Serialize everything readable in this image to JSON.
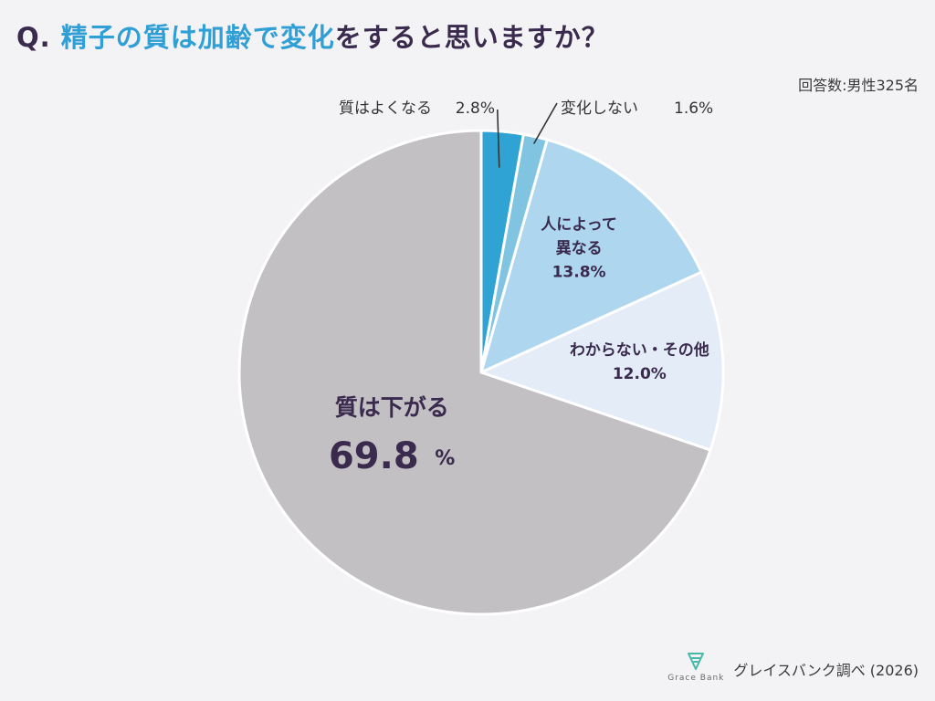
{
  "title": {
    "prefix": "Q.",
    "highlight": "精子の質は加齢で変化",
    "rest": "をすると思いますか？"
  },
  "respondents": "回答数:男性325名",
  "chart_data": {
    "type": "pie",
    "start": "12 o'clock",
    "direction": "clockwise",
    "slices": [
      {
        "label": "質はよくなる",
        "value": 2.8,
        "value_text": "2.8%",
        "color": "#2fa3d4"
      },
      {
        "label": "変化しない",
        "value": 1.6,
        "value_text": "1.6%",
        "color": "#80c4e2"
      },
      {
        "label": "人によって異なる",
        "value": 13.8,
        "value_text": "13.8%",
        "color": "#aed7ef"
      },
      {
        "label": "わからない・その他",
        "value": 12.0,
        "value_text": "12.0%",
        "color": "#e3ecf7"
      },
      {
        "label": "質は下がる",
        "value": 69.8,
        "value_text": "69.8",
        "unit": "%",
        "color": "#c3c0c4"
      }
    ],
    "label_lines": {
      "slice_2": [
        "人によって",
        "異なる"
      ]
    }
  },
  "footer": {
    "logo_text": "Grace Bank",
    "source": "グレイスバンク調べ (2026)"
  }
}
